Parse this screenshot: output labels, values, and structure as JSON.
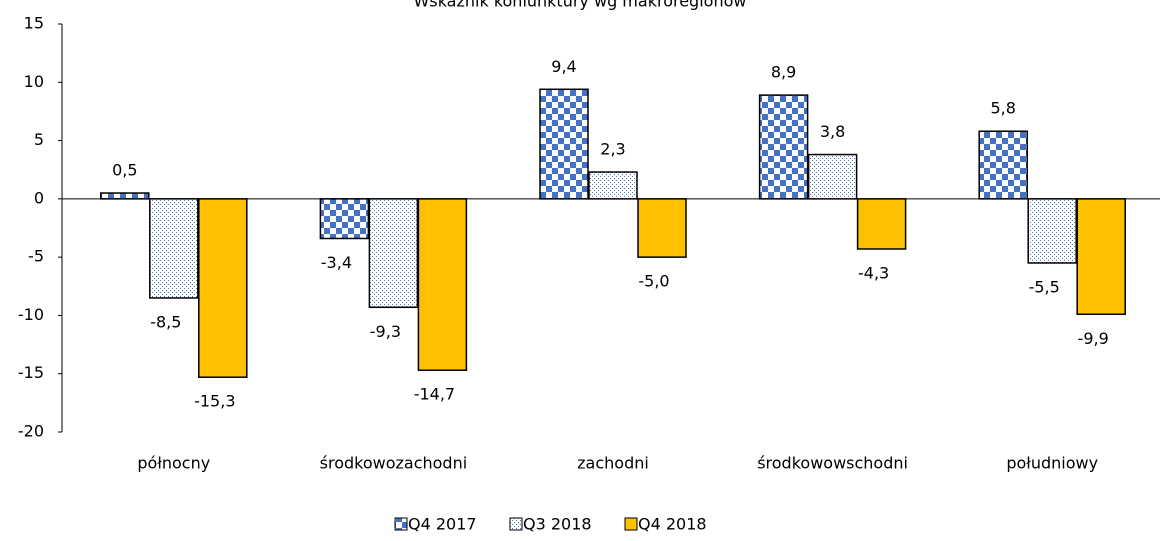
{
  "chart_data": {
    "type": "bar",
    "title": "Wskaźnik koniunktury wg makroregionów",
    "categories": [
      "północny",
      "środkowozachodni",
      "zachodni",
      "środkowowschodni",
      "południowy"
    ],
    "series": [
      {
        "name": "Q4 2017",
        "color": "#4472c4",
        "pattern": "checker",
        "values": [
          0.5,
          -3.4,
          9.4,
          8.9,
          5.8
        ],
        "value_labels": [
          "0,5",
          "-3,4",
          "9,4",
          "8,9",
          "5,8"
        ]
      },
      {
        "name": "Q3 2018",
        "color": "#4472c4",
        "pattern": "dots",
        "values": [
          -8.5,
          -9.3,
          2.3,
          3.8,
          -5.5
        ],
        "value_labels": [
          "-8,5",
          "-9,3",
          "2,3",
          "3,8",
          "-5,5"
        ]
      },
      {
        "name": "Q4 2018",
        "color": "#ffc000",
        "pattern": "solid",
        "values": [
          -15.3,
          -14.7,
          -5.0,
          -4.3,
          -9.9
        ],
        "value_labels": [
          "-15,3",
          "-14,7",
          "-5,0",
          "-4,3",
          "-9,9"
        ]
      }
    ],
    "ylim": [
      -20,
      15
    ],
    "yticks": [
      15,
      10,
      5,
      0,
      -5,
      -10,
      -15,
      -20
    ],
    "grid": false,
    "legend": "bottom"
  }
}
